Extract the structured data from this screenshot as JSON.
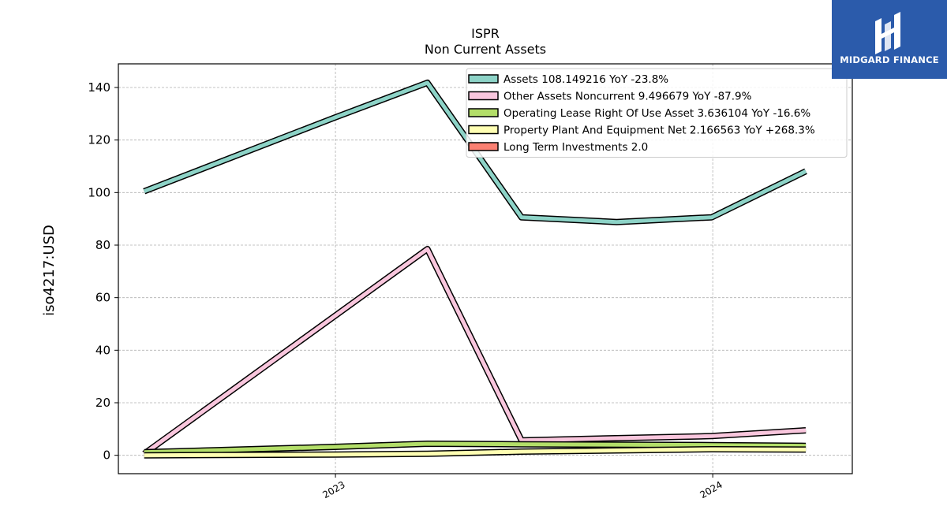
{
  "chart_data": {
    "type": "line",
    "title": "ISPR",
    "subtitle": "Non Current  Assets",
    "ylabel": "iso4217:USD",
    "xlabel": "",
    "ylim": [
      -7,
      149
    ],
    "xlim": [
      "2022-06-05",
      "2024-05-15"
    ],
    "yticks": [
      0,
      20,
      40,
      60,
      80,
      100,
      120,
      140
    ],
    "xticks": [
      {
        "date": "2023-01-01",
        "label": "2023"
      },
      {
        "date": "2024-01-01",
        "label": "2024"
      }
    ],
    "grid": true,
    "legend_position": "top-right",
    "series": [
      {
        "name": "Assets  108.149216 YoY -23.8%",
        "color": "#8dd3c7",
        "points": [
          [
            "2022-06-30",
            100.5
          ],
          [
            "2022-12-31",
            128.5
          ],
          [
            "2023-03-31",
            141.8
          ],
          [
            "2023-06-30",
            90.6
          ],
          [
            "2023-09-30",
            88.8
          ],
          [
            "2023-12-31",
            90.6
          ],
          [
            "2024-03-31",
            108.1
          ]
        ]
      },
      {
        "name": "Other Assets Noncurrent  9.496679 YoY -87.9%",
        "color": "#f9c6dd",
        "points": [
          [
            "2022-06-30",
            0.6
          ],
          [
            "2023-03-31",
            78.5
          ],
          [
            "2023-06-30",
            5.7
          ],
          [
            "2023-12-31",
            7.3
          ],
          [
            "2024-03-31",
            9.5
          ]
        ]
      },
      {
        "name": "Operating Lease Right Of Use Asset  3.636104 YoY -16.6%",
        "color": "#b3de69",
        "points": [
          [
            "2022-06-30",
            1.2
          ],
          [
            "2022-12-31",
            3.2
          ],
          [
            "2023-03-31",
            4.4
          ],
          [
            "2023-06-30",
            4.2
          ],
          [
            "2023-12-31",
            3.9
          ],
          [
            "2024-03-31",
            3.6
          ]
        ]
      },
      {
        "name": "Property Plant And Equipment Net  2.166563 YoY +268.3%",
        "color": "#ffffb3",
        "points": [
          [
            "2022-06-30",
            0.0
          ],
          [
            "2022-12-31",
            0.3
          ],
          [
            "2023-03-31",
            0.6
          ],
          [
            "2023-06-30",
            1.4
          ],
          [
            "2023-12-31",
            2.3
          ],
          [
            "2024-03-31",
            2.17
          ]
        ]
      },
      {
        "name": "Long Term Investments  2.0",
        "color": "#fb8072",
        "points": []
      }
    ]
  },
  "branding": {
    "logo_text": "MIDGARD FINANCE",
    "logo_color": "#2b5bab"
  }
}
